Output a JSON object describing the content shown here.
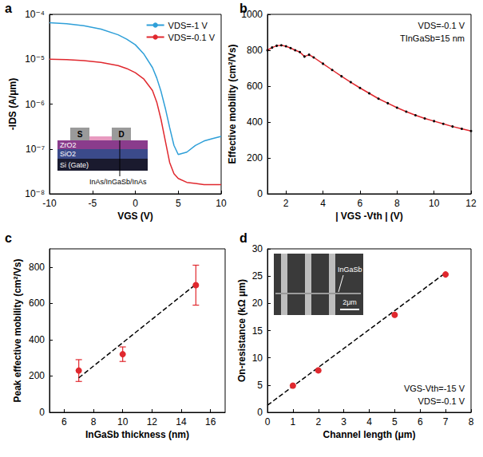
{
  "chart_data": [
    {
      "type": "line",
      "title": "a",
      "x_label": "VGS (V)",
      "y_label": "-IDS (A/μm)",
      "log": "y",
      "grid": false,
      "legend": "upper right",
      "xlim": [
        -10,
        10
      ],
      "xticks": [
        -10,
        -5,
        0,
        5,
        10
      ],
      "ylim": [
        1e-08,
        0.0001
      ],
      "yticks": [
        {
          "value": 1e-08,
          "label": "10⁻⁸"
        },
        {
          "value": 1e-07,
          "label": "10⁻⁷"
        },
        {
          "value": 1e-06,
          "label": "10⁻⁶"
        },
        {
          "value": 1e-05,
          "label": "10⁻⁵"
        },
        {
          "value": 0.0001,
          "label": "10⁻⁴"
        }
      ],
      "x": [
        -10,
        -8,
        -6,
        -4,
        -2,
        -1,
        0,
        1,
        2,
        2.5,
        3,
        3.5,
        4,
        4.5,
        5,
        6,
        7,
        8,
        9,
        10
      ],
      "series": [
        {
          "name": "VDS=-1 V",
          "color": "#2e9fd8",
          "values": [
            6.5e-05,
            6.2e-05,
            5.6e-05,
            4.7e-05,
            3.5e-05,
            2.8e-05,
            2.1e-05,
            1.3e-05,
            6.5e-06,
            3.8e-06,
            1.9e-06,
            8e-07,
            3e-07,
            1.2e-07,
            7.5e-08,
            8.5e-08,
            1.2e-07,
            1.5e-07,
            1.7e-07,
            1.9e-07
          ]
        },
        {
          "name": "VDS=-0.1 V",
          "color": "#e0282e",
          "values": [
            1e-05,
            9.8e-06,
            9.3e-06,
            8.5e-06,
            7.2e-06,
            6.2e-06,
            5e-06,
            3.6e-06,
            2e-06,
            1.1e-06,
            4.5e-07,
            1.5e-07,
            5e-08,
            2.8e-08,
            2.2e-08,
            1.8e-08,
            1.7e-08,
            1.6e-08,
            1.6e-08,
            1.6e-08
          ]
        }
      ],
      "annotations": [
        "ZrO2",
        "S",
        "D",
        "SiO2",
        "Si (Gate)",
        "InAs/InGaSb/InAs"
      ]
    },
    {
      "type": "line",
      "title": "b",
      "x_label": "| VGS -Vth | (V)",
      "y_label": "Effective mobility (cm²/Vs)",
      "grid": false,
      "xlim": [
        1,
        12
      ],
      "xticks": [
        2,
        4,
        6,
        8,
        10,
        12
      ],
      "ylim": [
        0,
        1000
      ],
      "yticks": [
        0,
        200,
        400,
        600,
        800,
        1000
      ],
      "x": [
        1,
        1.25,
        1.5,
        1.75,
        2,
        2.25,
        2.5,
        2.75,
        3,
        3.25,
        3.5,
        4,
        4.5,
        5,
        5.5,
        6,
        6.5,
        7,
        7.5,
        8,
        8.5,
        9,
        9.5,
        10,
        10.5,
        11,
        11.5,
        12
      ],
      "series": [
        {
          "type": "scatter",
          "color": "#000000",
          "marker": "circle",
          "values": [
            800,
            815,
            825,
            828,
            822,
            812,
            800,
            790,
            765,
            775,
            760,
            725,
            690,
            655,
            622,
            590,
            560,
            530,
            505,
            480,
            458,
            438,
            420,
            405,
            390,
            375,
            362,
            350
          ]
        },
        {
          "type": "line",
          "color": "#e0282e",
          "values": [
            800,
            815,
            825,
            828,
            822,
            812,
            800,
            790,
            765,
            775,
            760,
            725,
            690,
            655,
            622,
            590,
            560,
            530,
            505,
            480,
            458,
            438,
            420,
            405,
            390,
            375,
            362,
            350
          ]
        }
      ],
      "annotations": [
        "VDS=-0.1 V",
        "TInGaSb=15 nm"
      ]
    },
    {
      "type": "scatter",
      "title": "c",
      "x_label": "InGaSb thickness (nm)",
      "y_label": "Peak effective mobility (cm²/Vs)",
      "grid": false,
      "xlim": [
        5,
        17
      ],
      "xticks": [
        6,
        8,
        10,
        12,
        14,
        16
      ],
      "ylim": [
        0,
        900
      ],
      "yticks": [
        0,
        200,
        400,
        600,
        800
      ],
      "x": [
        7,
        10,
        15
      ],
      "series": [
        {
          "color": "#e0282e",
          "marker": "circle",
          "values": [
            230,
            320,
            700
          ],
          "errors": [
            60,
            40,
            110
          ]
        },
        {
          "type": "line",
          "color": "#000000",
          "line_style": "dashed",
          "x": [
            7,
            15
          ],
          "values": [
            190,
            705
          ]
        }
      ]
    },
    {
      "type": "scatter",
      "title": "d",
      "x_label": "Channel length (μm)",
      "y_label": "On-resistance (kΩ μm)",
      "grid": false,
      "xlim": [
        0,
        8
      ],
      "xticks": [
        0,
        1,
        2,
        3,
        4,
        5,
        6,
        7,
        8
      ],
      "ylim": [
        0,
        30
      ],
      "yticks": [
        0,
        5,
        10,
        15,
        20,
        25,
        30
      ],
      "x": [
        1,
        2,
        5,
        7
      ],
      "series": [
        {
          "color": "#e0282e",
          "marker": "circle",
          "values": [
            4.9,
            7.7,
            17.9,
            25.3
          ]
        },
        {
          "type": "line",
          "color": "#000000",
          "line_style": "dashed",
          "x": [
            0,
            7
          ],
          "values": [
            1.3,
            25.6
          ]
        }
      ],
      "annotations": [
        "VGS-Vth=-15 V",
        "VDS=-0.1 V",
        "InGaSb",
        "2μm"
      ]
    }
  ]
}
